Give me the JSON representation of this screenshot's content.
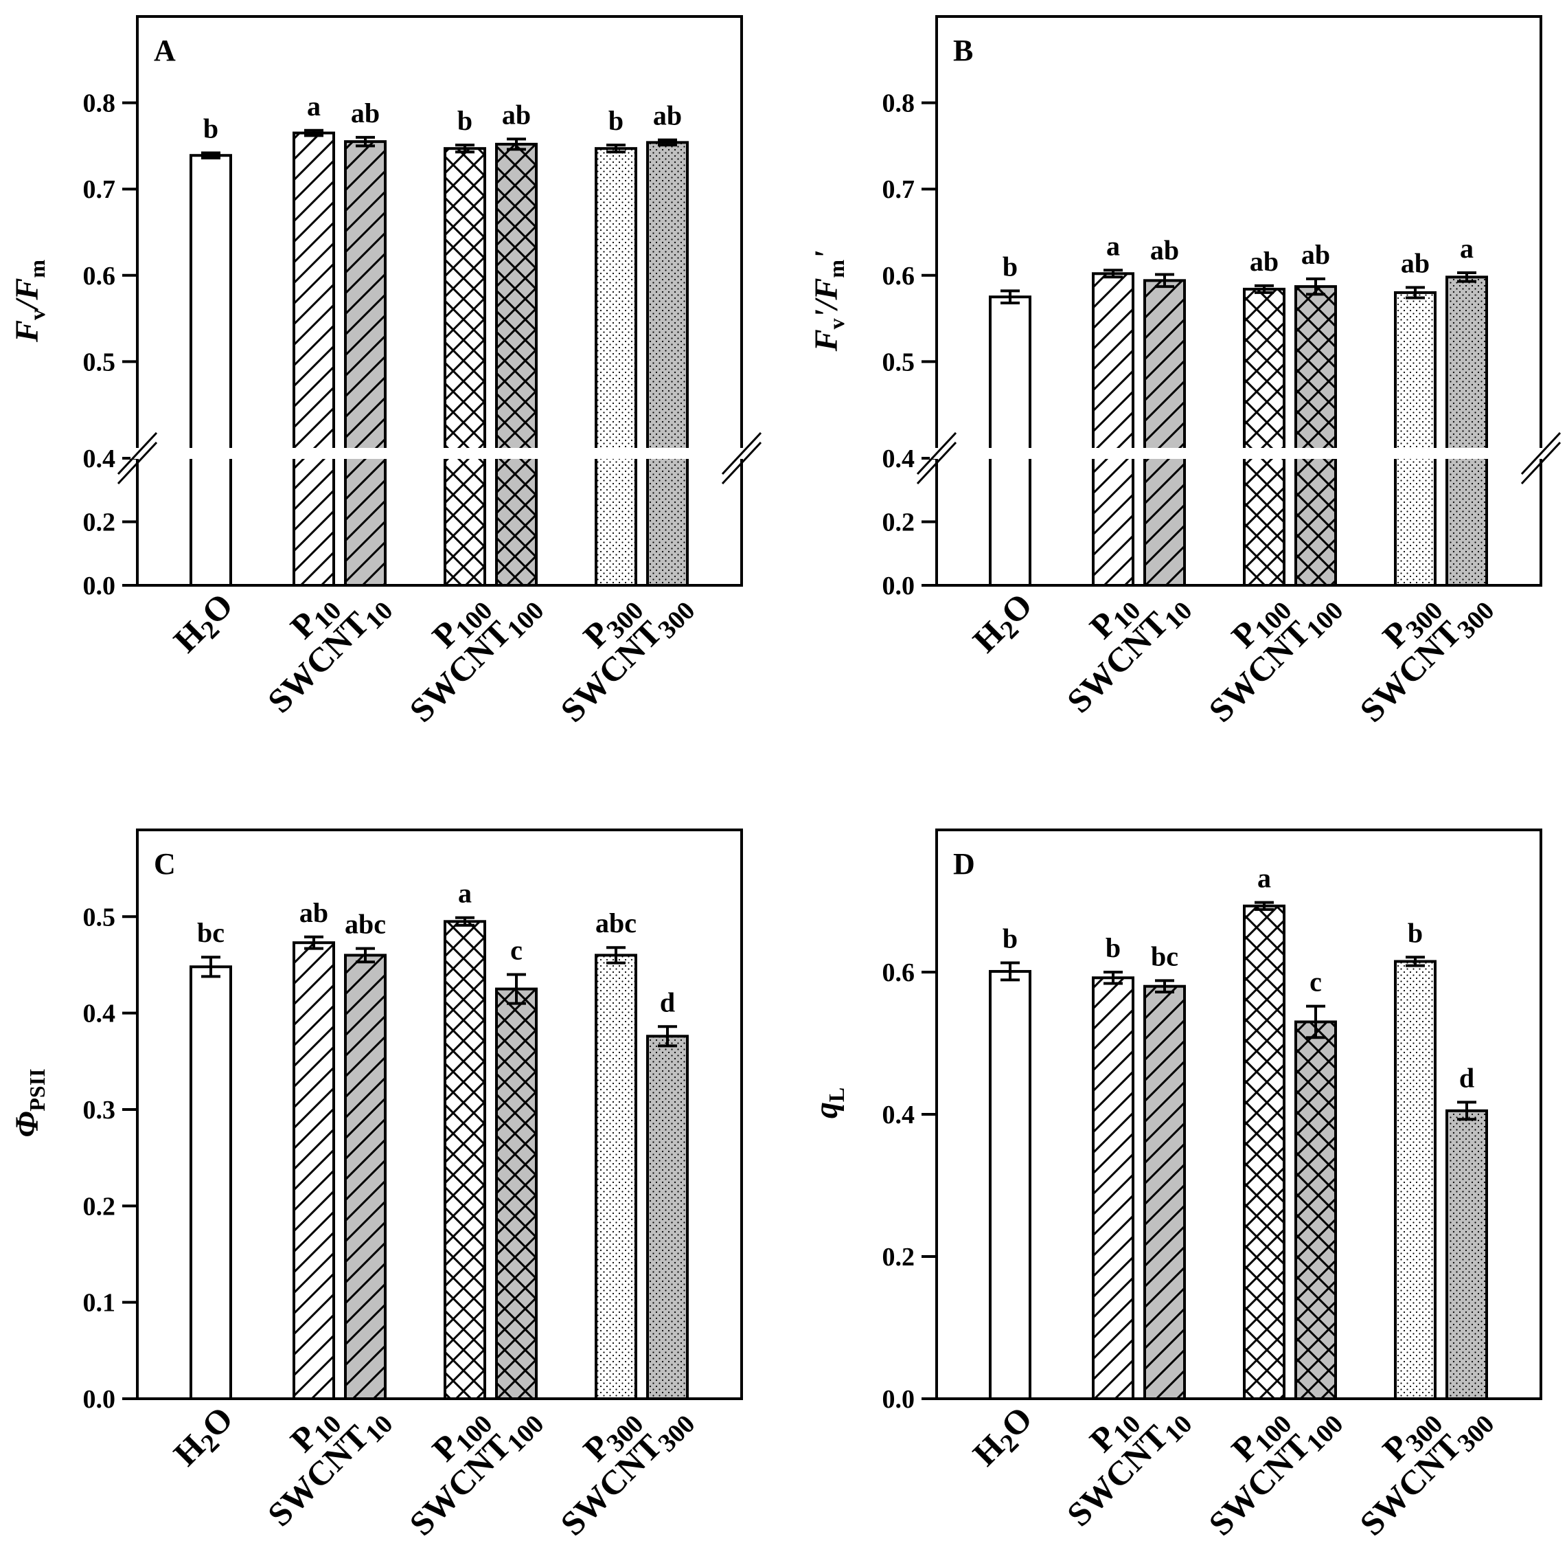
{
  "chart_data": [
    {
      "panel": "A",
      "type": "bar",
      "ylabel": {
        "main": "F",
        "sub": "v",
        "mid": "/F",
        "sub2": "m",
        "suffix": ""
      },
      "axis_break": true,
      "lower_range": [
        0,
        0.4
      ],
      "upper_range": [
        0.4,
        0.9
      ],
      "yticks": [
        0.0,
        0.2,
        0.4,
        0.5,
        0.6,
        0.7,
        0.8
      ],
      "categories": [
        "H2O",
        "P10",
        "SWCNT10",
        "P100",
        "SWCNT100",
        "P300",
        "SWCNT300"
      ],
      "values": [
        0.739,
        0.765,
        0.755,
        0.747,
        0.752,
        0.747,
        0.754
      ],
      "errors": [
        0.003,
        0.003,
        0.005,
        0.004,
        0.006,
        0.004,
        0.003
      ],
      "significance": [
        "b",
        "a",
        "ab",
        "b",
        "ab",
        "b",
        "ab"
      ]
    },
    {
      "panel": "B",
      "type": "bar",
      "ylabel": {
        "main": "F",
        "sub": "v",
        "mid": "'/F",
        "sub2": "m",
        "suffix": "'"
      },
      "axis_break": true,
      "lower_range": [
        0,
        0.4
      ],
      "upper_range": [
        0.4,
        0.9
      ],
      "yticks": [
        0.0,
        0.2,
        0.4,
        0.5,
        0.6,
        0.7,
        0.8
      ],
      "categories": [
        "H2O",
        "P10",
        "SWCNT10",
        "P100",
        "SWCNT100",
        "P300",
        "SWCNT300"
      ],
      "values": [
        0.575,
        0.602,
        0.594,
        0.584,
        0.587,
        0.58,
        0.598
      ],
      "errors": [
        0.007,
        0.004,
        0.007,
        0.004,
        0.009,
        0.006,
        0.005
      ],
      "significance": [
        "b",
        "a",
        "ab",
        "ab",
        "ab",
        "ab",
        "a"
      ]
    },
    {
      "panel": "C",
      "type": "bar",
      "ylabel": {
        "main": "Φ",
        "sub": "PSII",
        "mid": "",
        "sub2": "",
        "suffix": ""
      },
      "axis_break": false,
      "ylim": [
        0,
        0.59
      ],
      "yticks": [
        0.0,
        0.1,
        0.2,
        0.3,
        0.4,
        0.5
      ],
      "categories": [
        "H2O",
        "P10",
        "SWCNT10",
        "P100",
        "SWCNT100",
        "P300",
        "SWCNT300"
      ],
      "values": [
        0.448,
        0.473,
        0.46,
        0.495,
        0.425,
        0.46,
        0.376
      ],
      "errors": [
        0.01,
        0.006,
        0.007,
        0.004,
        0.015,
        0.008,
        0.01
      ],
      "significance": [
        "bc",
        "ab",
        "abc",
        "a",
        "c",
        "abc",
        "d"
      ]
    },
    {
      "panel": "D",
      "type": "bar",
      "ylabel": {
        "main": "q",
        "sub": "L",
        "mid": "",
        "sub2": "",
        "suffix": ""
      },
      "axis_break": false,
      "ylim": [
        0,
        0.8
      ],
      "yticks": [
        0.0,
        0.2,
        0.4,
        0.6
      ],
      "categories": [
        "H2O",
        "P10",
        "SWCNT10",
        "P100",
        "SWCNT100",
        "P300",
        "SWCNT300"
      ],
      "values": [
        0.601,
        0.592,
        0.58,
        0.693,
        0.53,
        0.615,
        0.405
      ],
      "errors": [
        0.012,
        0.008,
        0.008,
        0.005,
        0.022,
        0.006,
        0.012
      ],
      "significance": [
        "b",
        "b",
        "bc",
        "a",
        "c",
        "b",
        "d"
      ]
    }
  ],
  "category_labels": [
    {
      "main": "H",
      "sub": "2",
      "tail": "O"
    },
    {
      "main": "P",
      "sub": "10",
      "tail": ""
    },
    {
      "main": "SWCNT",
      "sub": "10",
      "tail": ""
    },
    {
      "main": "P",
      "sub": "100",
      "tail": ""
    },
    {
      "main": "SWCNT",
      "sub": "100",
      "tail": ""
    },
    {
      "main": "P",
      "sub": "300",
      "tail": ""
    },
    {
      "main": "SWCNT",
      "sub": "300",
      "tail": ""
    }
  ],
  "bar_styles": [
    {
      "fill": "#ffffff",
      "pattern": "none"
    },
    {
      "fill": "#ffffff",
      "pattern": "diag"
    },
    {
      "fill": "#c0c0c0",
      "pattern": "diag"
    },
    {
      "fill": "#ffffff",
      "pattern": "cross"
    },
    {
      "fill": "#c0c0c0",
      "pattern": "cross"
    },
    {
      "fill": "#ffffff",
      "pattern": "dots"
    },
    {
      "fill": "#c0c0c0",
      "pattern": "dots"
    }
  ]
}
